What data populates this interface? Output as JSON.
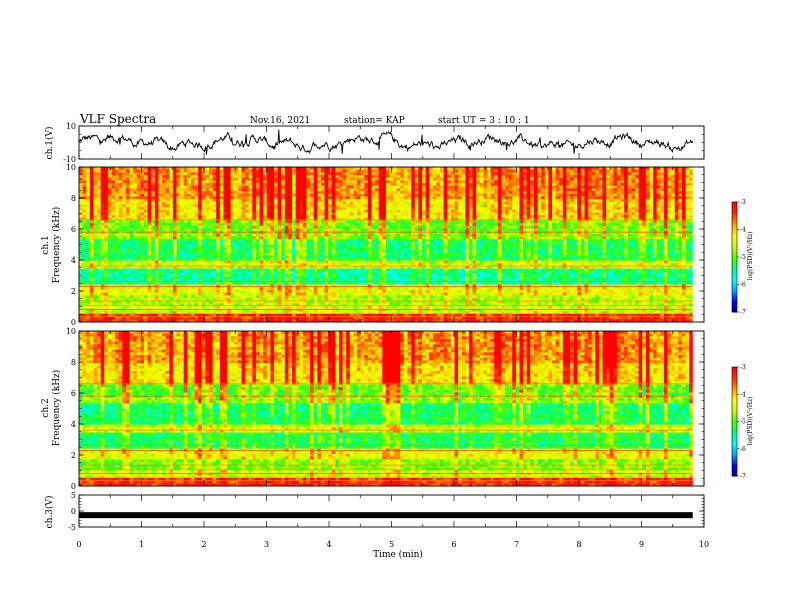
{
  "header": {
    "title": "VLF Spectra",
    "date": "Nov.16, 2021",
    "station": "station= KAP",
    "start": "start  UT =   3  : 10 : 1"
  },
  "chart_data": {
    "type": "multi-panel",
    "x_axis": {
      "label": "Time  (min)",
      "range": [
        0,
        10
      ],
      "ticks": [
        0,
        1,
        2,
        3,
        4,
        5,
        6,
        7,
        8,
        9,
        10
      ],
      "data_end": 9.82
    },
    "panels": [
      {
        "id": "ch1-waveform",
        "type": "line",
        "ylabel": "ch.1(V)",
        "yticks": [
          "10",
          "-10"
        ],
        "ylim": [
          -10,
          10
        ],
        "description_values": "noisy waveform fluctuating mostly between -5 and 5 V"
      },
      {
        "id": "ch1-spectrogram",
        "type": "heatmap",
        "ylabel_line1": "ch.1",
        "ylabel_line2": "Frequency  (kHz)",
        "ylim": [
          0,
          10
        ],
        "yticks": [
          "0",
          "2",
          "4",
          "6",
          "8",
          "10"
        ],
        "colorbar": {
          "label": "log(PSD)(V²/Hz)",
          "range": [
            -7,
            -3
          ],
          "ticks": [
            "-3",
            "-4",
            "-5",
            "-6",
            "-7"
          ]
        }
      },
      {
        "id": "ch2-spectrogram",
        "type": "heatmap",
        "ylabel_line1": "ch.2",
        "ylabel_line2": "Frequency  (kHz)",
        "ylim": [
          0,
          10
        ],
        "yticks": [
          "0",
          "2",
          "4",
          "6",
          "8",
          "10"
        ],
        "colorbar": {
          "label": "log(PSD)(V²/Hz)",
          "range": [
            -7,
            -3
          ],
          "ticks": [
            "-3",
            "-4",
            "-5",
            "-6",
            "-7"
          ]
        }
      },
      {
        "id": "ch3-waveform",
        "type": "line",
        "ylabel": "ch.3(V)",
        "yticks": [
          "5",
          "0",
          "-5"
        ],
        "ylim": [
          -5,
          5
        ],
        "constant_value": -1.3
      }
    ],
    "colormap": [
      "#000080",
      "#0000ff",
      "#00a0ff",
      "#00ffff",
      "#00ff80",
      "#40ff00",
      "#c0ff00",
      "#ffff00",
      "#ffa000",
      "#ff3000",
      "#ff0000"
    ]
  }
}
